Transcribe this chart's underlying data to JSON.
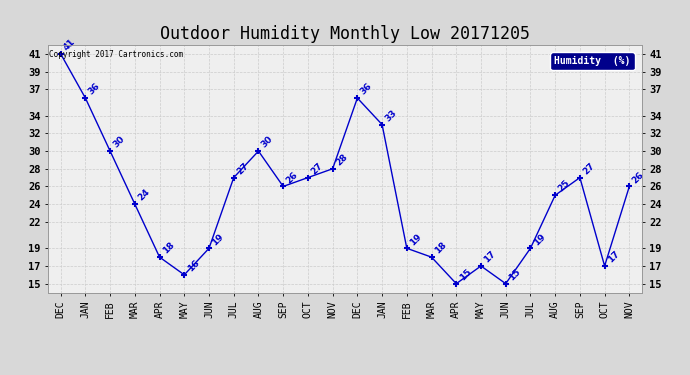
{
  "title": "Outdoor Humidity Monthly Low 20171205",
  "copyright_text": "Copyright 2017 Cartronics.com",
  "legend_label": "Humidity  (%)",
  "months": [
    "DEC",
    "JAN",
    "FEB",
    "MAR",
    "APR",
    "MAY",
    "JUN",
    "JUL",
    "AUG",
    "SEP",
    "OCT",
    "NOV",
    "DEC",
    "JAN",
    "FEB",
    "MAR",
    "APR",
    "MAY",
    "JUN",
    "JUL",
    "AUG",
    "SEP",
    "OCT",
    "NOV"
  ],
  "values": [
    41,
    36,
    30,
    24,
    18,
    16,
    19,
    27,
    30,
    26,
    27,
    28,
    36,
    33,
    19,
    18,
    15,
    17,
    15,
    19,
    25,
    27,
    17,
    26
  ],
  "line_color": "#0000CC",
  "marker_color": "#0000CC",
  "bg_color": "#D8D8D8",
  "plot_bg_color": "#EFEFEF",
  "grid_color": "#CCCCCC",
  "yticks": [
    15,
    17,
    19,
    22,
    24,
    26,
    28,
    30,
    32,
    34,
    37,
    39,
    41
  ],
  "ylim": [
    14,
    42
  ],
  "title_fontsize": 12,
  "legend_bg": "#00008B",
  "legend_text_color": "#FFFFFF"
}
